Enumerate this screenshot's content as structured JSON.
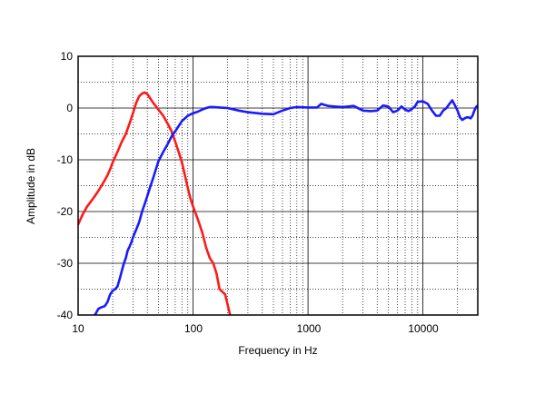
{
  "chart_data": {
    "type": "line",
    "title": "",
    "xlabel": "Frequency in Hz",
    "ylabel": "Amplitude in dB",
    "x_scale": "log",
    "xlim": [
      10,
      30000
    ],
    "ylim": [
      -40,
      10
    ],
    "grid": true,
    "y_ticks": [
      "10",
      "0",
      "-10",
      "-20",
      "-30",
      "-40"
    ],
    "x_ticks": [
      "10",
      "100",
      "1000",
      "10000"
    ],
    "series": [
      {
        "color": "#ff1a1a",
        "points": [
          [
            10,
            -22.5
          ],
          [
            11,
            -20.5
          ],
          [
            12,
            -19
          ],
          [
            13,
            -18
          ],
          [
            14,
            -17
          ],
          [
            15,
            -16
          ],
          [
            16,
            -15
          ],
          [
            17,
            -14
          ],
          [
            18,
            -13
          ],
          [
            19,
            -11.8
          ],
          [
            20,
            -10.5
          ],
          [
            22,
            -8.5
          ],
          [
            24,
            -6.5
          ],
          [
            26,
            -5
          ],
          [
            28,
            -3
          ],
          [
            30,
            -1
          ],
          [
            32,
            1
          ],
          [
            34,
            2.3
          ],
          [
            36,
            2.8
          ],
          [
            38,
            3
          ],
          [
            40,
            2.7
          ],
          [
            42,
            2
          ],
          [
            45,
            1
          ],
          [
            50,
            -0.3
          ],
          [
            55,
            -1.5
          ],
          [
            60,
            -3
          ],
          [
            65,
            -4.5
          ],
          [
            70,
            -6.5
          ],
          [
            75,
            -8.5
          ],
          [
            80,
            -10.5
          ],
          [
            85,
            -13
          ],
          [
            90,
            -15.5
          ],
          [
            95,
            -17.5
          ],
          [
            100,
            -19
          ],
          [
            110,
            -21.5
          ],
          [
            120,
            -24
          ],
          [
            130,
            -27
          ],
          [
            140,
            -29
          ],
          [
            150,
            -30
          ],
          [
            160,
            -32
          ],
          [
            170,
            -35
          ],
          [
            180,
            -35.5
          ],
          [
            190,
            -36
          ],
          [
            200,
            -38
          ],
          [
            210,
            -40
          ]
        ]
      },
      {
        "color": "#1a1aff",
        "points": [
          [
            14,
            -40
          ],
          [
            15,
            -38.8
          ],
          [
            16,
            -38.5
          ],
          [
            17,
            -38.3
          ],
          [
            18,
            -37.5
          ],
          [
            19,
            -36
          ],
          [
            20,
            -35.3
          ],
          [
            21,
            -35
          ],
          [
            22,
            -34.5
          ],
          [
            23,
            -33
          ],
          [
            24,
            -31.5
          ],
          [
            25,
            -30
          ],
          [
            26,
            -29
          ],
          [
            27,
            -27.5
          ],
          [
            28,
            -26.8
          ],
          [
            29,
            -26
          ],
          [
            30,
            -25
          ],
          [
            32,
            -23.5
          ],
          [
            34,
            -22
          ],
          [
            36,
            -20
          ],
          [
            38,
            -18.5
          ],
          [
            40,
            -17
          ],
          [
            42,
            -15.5
          ],
          [
            45,
            -13.5
          ],
          [
            48,
            -11.5
          ],
          [
            50,
            -10.3
          ],
          [
            55,
            -8.5
          ],
          [
            60,
            -7
          ],
          [
            65,
            -5.5
          ],
          [
            70,
            -4.5
          ],
          [
            75,
            -3.5
          ],
          [
            80,
            -2.5
          ],
          [
            90,
            -1.5
          ],
          [
            100,
            -1
          ],
          [
            110,
            -0.7
          ],
          [
            120,
            -0.3
          ],
          [
            130,
            0
          ],
          [
            140,
            0.2
          ],
          [
            150,
            0.2
          ],
          [
            170,
            0.1
          ],
          [
            200,
            0
          ],
          [
            250,
            -0.5
          ],
          [
            300,
            -0.8
          ],
          [
            400,
            -1.1
          ],
          [
            500,
            -1.2
          ],
          [
            600,
            -0.5
          ],
          [
            700,
            0
          ],
          [
            800,
            0.2
          ],
          [
            1000,
            0.1
          ],
          [
            1200,
            0.1
          ],
          [
            1300,
            0.8
          ],
          [
            1500,
            0.4
          ],
          [
            1700,
            0.3
          ],
          [
            2000,
            0.2
          ],
          [
            2500,
            0.4
          ],
          [
            3000,
            -0.5
          ],
          [
            3500,
            -0.6
          ],
          [
            4000,
            -0.5
          ],
          [
            4500,
            0.5
          ],
          [
            5000,
            0.3
          ],
          [
            5500,
            -0.8
          ],
          [
            6000,
            -0.5
          ],
          [
            6500,
            0.3
          ],
          [
            7000,
            -0.3
          ],
          [
            7500,
            -0.6
          ],
          [
            8000,
            -0.2
          ],
          [
            8500,
            0.3
          ],
          [
            9000,
            1.2
          ],
          [
            10000,
            1.3
          ],
          [
            11000,
            0.8
          ],
          [
            12000,
            -0.5
          ],
          [
            13000,
            -1.5
          ],
          [
            14000,
            -1.5
          ],
          [
            15000,
            -0.5
          ],
          [
            16000,
            0
          ],
          [
            17000,
            0.8
          ],
          [
            18000,
            1.5
          ],
          [
            19000,
            0.5
          ],
          [
            20000,
            -0.5
          ],
          [
            21000,
            -1.8
          ],
          [
            22000,
            -2.3
          ],
          [
            23000,
            -2
          ],
          [
            24000,
            -1.8
          ],
          [
            25000,
            -1.8
          ],
          [
            26000,
            -2
          ],
          [
            27000,
            -1.5
          ],
          [
            28000,
            -0.5
          ],
          [
            29000,
            0.2
          ],
          [
            30000,
            0.5
          ]
        ]
      }
    ]
  }
}
